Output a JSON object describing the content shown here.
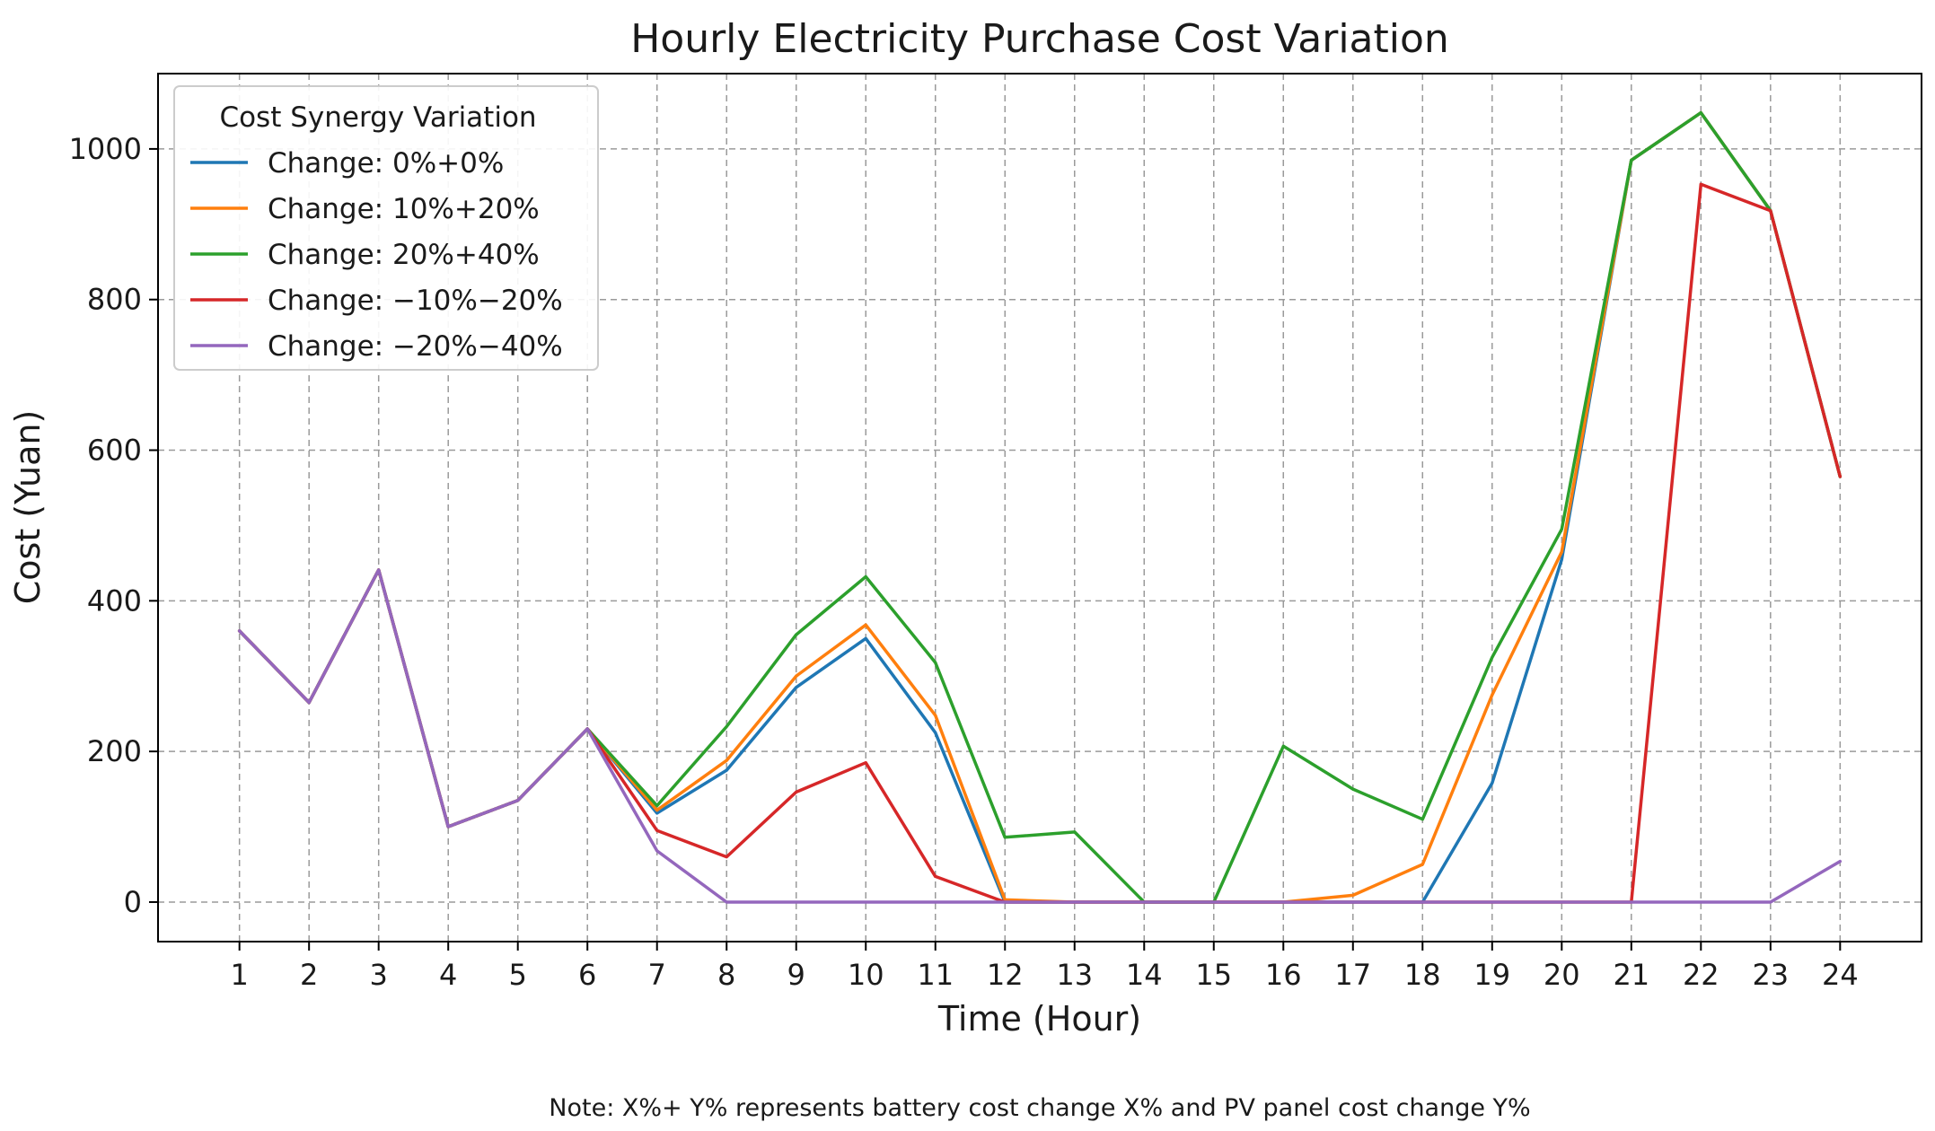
{
  "chart_data": {
    "type": "line",
    "title": "Hourly Electricity Purchase Cost Variation",
    "xlabel": "Time (Hour)",
    "ylabel": "Cost (Yuan)",
    "note": "Note: X%+ Y% represents battery cost change X% and PV panel cost change Y%",
    "x": [
      1,
      2,
      3,
      4,
      5,
      6,
      7,
      8,
      9,
      10,
      11,
      12,
      13,
      14,
      15,
      16,
      17,
      18,
      19,
      20,
      21,
      22,
      23,
      24
    ],
    "x_tick_labels": [
      "1",
      "2",
      "3",
      "4",
      "5",
      "6",
      "7",
      "8",
      "9",
      "10",
      "11",
      "12",
      "13",
      "14",
      "15",
      "16",
      "17",
      "18",
      "19",
      "20",
      "21",
      "22",
      "23",
      "24"
    ],
    "xlim": [
      -0.17,
      25.17
    ],
    "ylim": [
      -52.5,
      1100
    ],
    "y_ticks": [
      0,
      200,
      400,
      600,
      800,
      1000
    ],
    "y_tick_labels": [
      "0",
      "200",
      "400",
      "600",
      "800",
      "1000"
    ],
    "grid": true,
    "legend": {
      "title": "Cost Synergy Variation",
      "position": "top-left"
    },
    "series": [
      {
        "name": "Change: 0%+0%",
        "color": "#1f77b4",
        "values": [
          360,
          265,
          441,
          100,
          135,
          230,
          118,
          175,
          285,
          350,
          225,
          0,
          0,
          0,
          0,
          0,
          0,
          0,
          158,
          455,
          985,
          1048,
          918,
          565
        ]
      },
      {
        "name": "Change: 10%+20%",
        "color": "#ff7f0e",
        "values": [
          360,
          265,
          441,
          100,
          135,
          230,
          122,
          188,
          300,
          368,
          248,
          3,
          0,
          0,
          0,
          0,
          9,
          50,
          275,
          465,
          985,
          1048,
          918,
          565
        ]
      },
      {
        "name": "Change: 20%+40%",
        "color": "#2ca02c",
        "values": [
          360,
          265,
          441,
          100,
          135,
          230,
          128,
          233,
          355,
          432,
          318,
          86,
          93,
          0,
          0,
          207,
          150,
          110,
          325,
          495,
          985,
          1048,
          918,
          565
        ]
      },
      {
        "name": "Change: −10%−20%",
        "color": "#d62728",
        "values": [
          360,
          265,
          441,
          100,
          135,
          230,
          95,
          60,
          146,
          185,
          34,
          0,
          0,
          0,
          0,
          0,
          0,
          0,
          0,
          0,
          0,
          953,
          918,
          565
        ]
      },
      {
        "name": "Change: −20%−40%",
        "color": "#9467bd",
        "values": [
          360,
          265,
          441,
          100,
          135,
          230,
          68,
          0,
          0,
          0,
          0,
          0,
          0,
          0,
          0,
          0,
          0,
          0,
          0,
          0,
          0,
          0,
          0,
          54
        ]
      }
    ]
  }
}
